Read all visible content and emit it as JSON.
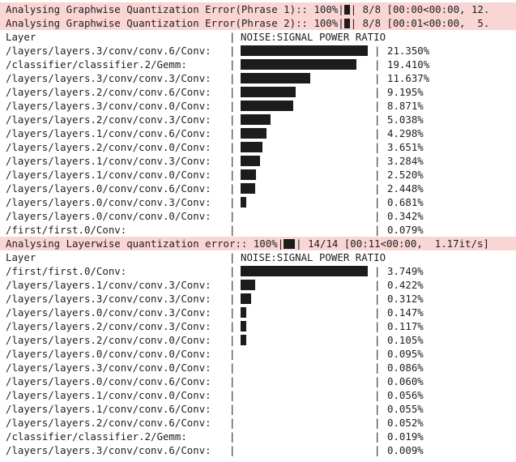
{
  "progress_lines": [
    {
      "prefix": "Analysing Graphwise Quantization Error(Phrase 1):: 100%|",
      "suffix": "| 8/8 [00:00<00:00, 12."
    },
    {
      "prefix": "Analysing Graphwise Quantization Error(Phrase 2):: 100%|",
      "suffix": "| 8/8 [00:01<00:00,  5."
    },
    {
      "prefix": "Analysing Layerwise quantization error:: 100%|",
      "suffix": "| 14/14 [00:11<00:00,  1.17it/s]"
    }
  ],
  "table_headers": {
    "layer": "Layer",
    "ratio": "NOISE:SIGNAL POWER RATIO",
    "sep": "|"
  },
  "graphwise_rows": [
    {
      "name": "/layers/layers.3/conv/conv.6/Conv:",
      "value": "21.350%",
      "fraction": 1.0
    },
    {
      "name": "/classifier/classifier.2/Gemm:",
      "value": "19.410%",
      "fraction": 0.909
    },
    {
      "name": "/layers/layers.3/conv/conv.3/Conv:",
      "value": "11.637%",
      "fraction": 0.545
    },
    {
      "name": "/layers/layers.2/conv/conv.6/Conv:",
      "value": "9.195%",
      "fraction": 0.431
    },
    {
      "name": "/layers/layers.3/conv/conv.0/Conv:",
      "value": "8.871%",
      "fraction": 0.416
    },
    {
      "name": "/layers/layers.2/conv/conv.3/Conv:",
      "value": "5.038%",
      "fraction": 0.236
    },
    {
      "name": "/layers/layers.1/conv/conv.6/Conv:",
      "value": "4.298%",
      "fraction": 0.201
    },
    {
      "name": "/layers/layers.2/conv/conv.0/Conv:",
      "value": "3.651%",
      "fraction": 0.171
    },
    {
      "name": "/layers/layers.1/conv/conv.3/Conv:",
      "value": "3.284%",
      "fraction": 0.154
    },
    {
      "name": "/layers/layers.1/conv/conv.0/Conv:",
      "value": "2.520%",
      "fraction": 0.118
    },
    {
      "name": "/layers/layers.0/conv/conv.6/Conv:",
      "value": "2.448%",
      "fraction": 0.115
    },
    {
      "name": "/layers/layers.0/conv/conv.3/Conv:",
      "value": "0.681%",
      "fraction": 0.032
    },
    {
      "name": "/layers/layers.0/conv/conv.0/Conv:",
      "value": "0.342%",
      "fraction": 0.0
    },
    {
      "name": "/first/first.0/Conv:",
      "value": "0.079%",
      "fraction": 0.0
    }
  ],
  "layerwise_rows": [
    {
      "name": "/first/first.0/Conv:",
      "value": "3.749%",
      "fraction": 1.0
    },
    {
      "name": "/layers/layers.1/conv/conv.3/Conv:",
      "value": "0.422%",
      "fraction": 0.113
    },
    {
      "name": "/layers/layers.3/conv/conv.3/Conv:",
      "value": "0.312%",
      "fraction": 0.083
    },
    {
      "name": "/layers/layers.0/conv/conv.3/Conv:",
      "value": "0.147%",
      "fraction": 0.039
    },
    {
      "name": "/layers/layers.2/conv/conv.3/Conv:",
      "value": "0.117%",
      "fraction": 0.031
    },
    {
      "name": "/layers/layers.2/conv/conv.0/Conv:",
      "value": "0.105%",
      "fraction": 0.028
    },
    {
      "name": "/layers/layers.0/conv/conv.0/Conv:",
      "value": "0.095%",
      "fraction": 0.0
    },
    {
      "name": "/layers/layers.3/conv/conv.0/Conv:",
      "value": "0.086%",
      "fraction": 0.0
    },
    {
      "name": "/layers/layers.0/conv/conv.6/Conv:",
      "value": "0.060%",
      "fraction": 0.0
    },
    {
      "name": "/layers/layers.1/conv/conv.0/Conv:",
      "value": "0.056%",
      "fraction": 0.0
    },
    {
      "name": "/layers/layers.1/conv/conv.6/Conv:",
      "value": "0.055%",
      "fraction": 0.0
    },
    {
      "name": "/layers/layers.2/conv/conv.6/Conv:",
      "value": "0.052%",
      "fraction": 0.0
    },
    {
      "name": "/classifier/classifier.2/Gemm:",
      "value": "0.019%",
      "fraction": 0.0
    },
    {
      "name": "/layers/layers.3/conv/conv.6/Conv:",
      "value": "0.009%",
      "fraction": 0.0
    }
  ],
  "colors": {
    "stderr_bg": "#f9d5d3",
    "bar": "#1c1c1c",
    "text": "#1f1f1f"
  }
}
